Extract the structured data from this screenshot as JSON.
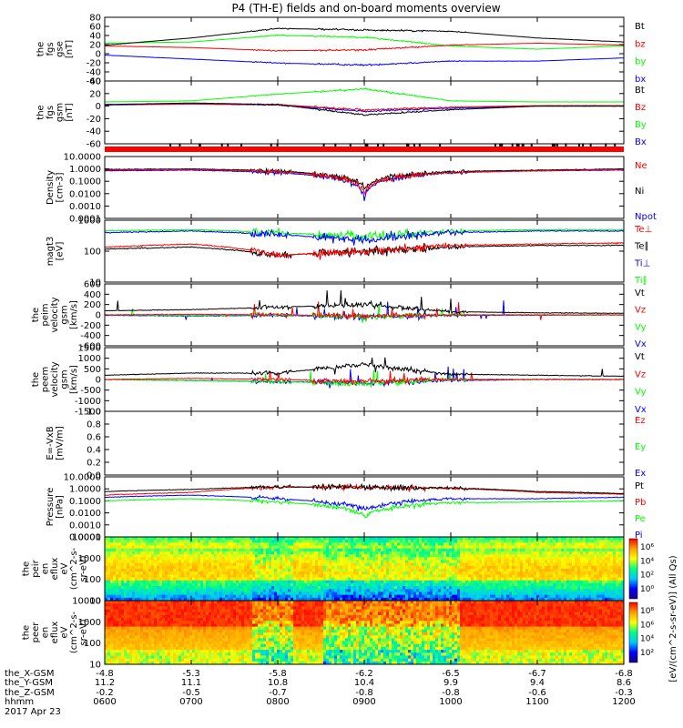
{
  "title": "P4 (TH-E) fields and on-board moments overview",
  "colors": {
    "black": "#000000",
    "red": "#ff0000",
    "green": "#00ff00",
    "blue": "#0000ff",
    "spec_stops": [
      "#1a0080",
      "#0000ff",
      "#00c8ff",
      "#00ff80",
      "#ffff00",
      "#ffa000",
      "#ff0000"
    ]
  },
  "colorbar": {
    "label": "[eV/(cm^2-s-sr-eV)] (All Qs)",
    "ticks1": [
      "10⁶",
      "10⁴",
      "10²",
      "10⁰"
    ],
    "ticks2": [
      "10⁸",
      "10⁶",
      "10⁴",
      "10²"
    ]
  },
  "footer": {
    "row_labels": [
      "the_X-GSM",
      "the_Y-GSM",
      "the_Z-GSM",
      "hhmm",
      "2017 Apr 23"
    ],
    "columns": [
      {
        "x": "-4.8",
        "y": "11.2",
        "z": "-0.2",
        "t": "0600"
      },
      {
        "x": "-5.3",
        "y": "11.1",
        "z": "-0.5",
        "t": "0700"
      },
      {
        "x": "-5.8",
        "y": "10.8",
        "z": "-0.7",
        "t": "0800"
      },
      {
        "x": "-6.2",
        "y": "10.4",
        "z": "-0.8",
        "t": "0900"
      },
      {
        "x": "-6.5",
        "y": "9.9",
        "z": "-0.8",
        "t": "1000"
      },
      {
        "x": "-6.7",
        "y": "9.4",
        "z": "-0.6",
        "t": "1100"
      },
      {
        "x": "-6.8",
        "y": "8.6",
        "z": "-0.3",
        "t": "1200"
      }
    ]
  },
  "panels": [
    {
      "id": "fgs-gse",
      "ylabel": [
        "the",
        "fgs",
        "gse",
        "[nT]"
      ],
      "yticks": [
        "80",
        "60",
        "40",
        "20",
        "0",
        "-20",
        "-40",
        "-60"
      ],
      "legend": [
        {
          "text": "Bt",
          "color": "black"
        },
        {
          "text": "bz",
          "color": "red"
        },
        {
          "text": "by",
          "color": "green"
        },
        {
          "text": "bx",
          "color": "blue"
        }
      ]
    },
    {
      "id": "fgs-gsm",
      "ylabel": [
        "the",
        "fgs",
        "gsm",
        "[nT]"
      ],
      "yticks": [
        "40",
        "20",
        "0",
        "-20",
        "-40",
        "-60"
      ],
      "legend": [
        {
          "text": "Bt",
          "color": "black"
        },
        {
          "text": "Bz",
          "color": "red"
        },
        {
          "text": "By",
          "color": "green"
        },
        {
          "text": "Bx",
          "color": "blue"
        }
      ]
    },
    {
      "id": "density",
      "ylabel": [
        "Density",
        "[cm-3]"
      ],
      "yticks": [
        "10.0000",
        "1.0000",
        "0.1000",
        "0.0100",
        "0.0010",
        "0.0001"
      ],
      "legend": [
        {
          "text": "Ne",
          "color": "red"
        },
        {
          "text": "Ni",
          "color": "black"
        },
        {
          "text": "Npot",
          "color": "blue"
        }
      ]
    },
    {
      "id": "temperature",
      "ylabel": [
        "magt3",
        "[eV]"
      ],
      "yticks": [
        "1000",
        "100",
        "10"
      ],
      "legend": [
        {
          "text": "Te⊥",
          "color": "red"
        },
        {
          "text": "Te∥",
          "color": "black"
        },
        {
          "text": "Ti⊥",
          "color": "blue"
        },
        {
          "text": "Ti∥",
          "color": "green"
        }
      ]
    },
    {
      "id": "peim-velocity",
      "ylabel": [
        "the",
        "peim",
        "velocity",
        "gsm",
        "[km/s]"
      ],
      "yticks": [
        "600",
        "400",
        "200",
        "0",
        "-200",
        "-400",
        "-600"
      ],
      "legend": [
        {
          "text": "Vt",
          "color": "black"
        },
        {
          "text": "Vz",
          "color": "red"
        },
        {
          "text": "Vy",
          "color": "green"
        },
        {
          "text": "Vx",
          "color": "blue"
        }
      ]
    },
    {
      "id": "peem-velocity",
      "ylabel": [
        "the",
        "peem",
        "velocity",
        "gsm",
        "[km/s]"
      ],
      "yticks": [
        "1500",
        "1000",
        "500",
        "0",
        "-500",
        "-1000",
        "-1500"
      ],
      "legend": [
        {
          "text": "Vt",
          "color": "black"
        },
        {
          "text": "Vz",
          "color": "red"
        },
        {
          "text": "Vy",
          "color": "green"
        },
        {
          "text": "Vx",
          "color": "blue"
        }
      ]
    },
    {
      "id": "efield",
      "ylabel": [
        "E=-VxB",
        "[mV/m]"
      ],
      "yticks": [
        "1.0",
        "0.8",
        "0.6",
        "0.4",
        "0.2",
        "0.0"
      ],
      "legend": [
        {
          "text": "Ez",
          "color": "red"
        },
        {
          "text": "Ey",
          "color": "green"
        },
        {
          "text": "Ex",
          "color": "blue"
        }
      ]
    },
    {
      "id": "pressure",
      "ylabel": [
        "Pressure",
        "[nPa]"
      ],
      "yticks": [
        "10.0000",
        "1.0000",
        "0.1000",
        "0.0100",
        "0.0010",
        "0.0001"
      ],
      "legend": [
        {
          "text": "Pt",
          "color": "black"
        },
        {
          "text": "Pb",
          "color": "red"
        },
        {
          "text": "Pe",
          "color": "green"
        },
        {
          "text": "Pi",
          "color": "blue"
        }
      ]
    },
    {
      "id": "peir-eflux",
      "ylabel": [
        "the",
        "peir",
        "en",
        "eflux",
        "eV",
        "(cm^2-s-",
        "sr-eV)"
      ],
      "yticks": [
        "10000",
        "1000",
        "100",
        "10"
      ],
      "legend": []
    },
    {
      "id": "peer-eflux",
      "ylabel": [
        "the",
        "peer",
        "en",
        "eflux",
        "eV",
        "(cm^2-s-",
        "sr-eV)"
      ],
      "yticks": [
        "10000",
        "1000",
        "100",
        "10"
      ],
      "legend": []
    }
  ],
  "chart_data": [
    {
      "type": "line",
      "panel": "fgs-gse",
      "x_label": "hhmm",
      "x": [
        "0600",
        "0700",
        "0800",
        "0900",
        "1000",
        "1100",
        "1200"
      ],
      "ylim": [
        -70,
        90
      ],
      "series": [
        {
          "name": "Bt",
          "values": [
            20,
            38,
            62,
            58,
            55,
            38,
            28
          ]
        },
        {
          "name": "bz",
          "values": [
            18,
            14,
            6,
            8,
            20,
            25,
            20
          ]
        },
        {
          "name": "by",
          "values": [
            25,
            28,
            45,
            40,
            18,
            10,
            18
          ]
        },
        {
          "name": "bx",
          "values": [
            -5,
            -15,
            -25,
            -30,
            -20,
            -20,
            -12
          ]
        }
      ]
    },
    {
      "type": "line",
      "panel": "fgs-gsm",
      "x": [
        "0600",
        "0700",
        "0800",
        "0900",
        "1000",
        "1100",
        "1200"
      ],
      "ylim": [
        -70,
        50
      ],
      "series": [
        {
          "name": "Bt",
          "values": [
            5,
            8,
            5,
            -15,
            -5,
            2,
            2
          ]
        },
        {
          "name": "Bz",
          "values": [
            5,
            6,
            5,
            -5,
            0,
            3,
            3
          ]
        },
        {
          "name": "By",
          "values": [
            10,
            12,
            25,
            35,
            12,
            10,
            10
          ]
        },
        {
          "name": "Bx",
          "values": [
            4,
            6,
            4,
            -8,
            -2,
            2,
            2
          ]
        }
      ]
    },
    {
      "type": "line",
      "panel": "density",
      "x": [
        "0600",
        "0700",
        "0800",
        "0900",
        "1000",
        "1100",
        "1200"
      ],
      "yscale": "log",
      "ylim": [
        0.0001,
        10
      ],
      "series": [
        {
          "name": "Ne",
          "values": [
            0.8,
            0.9,
            0.6,
            0.01,
            0.5,
            0.7,
            0.9
          ]
        },
        {
          "name": "Ni",
          "values": [
            0.9,
            1.0,
            0.7,
            0.03,
            0.6,
            0.8,
            1.0
          ]
        },
        {
          "name": "Npot",
          "values": [
            0.7,
            0.8,
            0.5,
            0.003,
            0.5,
            0.7,
            0.8
          ]
        }
      ]
    },
    {
      "type": "line",
      "panel": "temperature",
      "x": [
        "0600",
        "0700",
        "0800",
        "0900",
        "1000",
        "1100",
        "1200"
      ],
      "yscale": "log",
      "ylim": [
        10,
        10000
      ],
      "series": [
        {
          "name": "Te⊥",
          "values": [
            500,
            700,
            200,
            300,
            600,
            700,
            800
          ]
        },
        {
          "name": "Te∥",
          "values": [
            400,
            500,
            200,
            300,
            500,
            600,
            600
          ]
        },
        {
          "name": "Ti⊥",
          "values": [
            2500,
            3000,
            2000,
            1000,
            2500,
            3000,
            3000
          ]
        },
        {
          "name": "Ti∥",
          "values": [
            3000,
            3500,
            2500,
            1500,
            3000,
            3500,
            3500
          ]
        }
      ]
    },
    {
      "type": "line",
      "panel": "peim-velocity",
      "x": [
        "0600",
        "0700",
        "0800",
        "0900",
        "1000",
        "1100",
        "1200"
      ],
      "ylim": [
        -600,
        600
      ],
      "series": [
        {
          "name": "Vt",
          "values": [
            80,
            100,
            150,
            200,
            60,
            40,
            30
          ]
        },
        {
          "name": "Vz",
          "values": [
            0,
            10,
            0,
            -20,
            0,
            0,
            0
          ]
        },
        {
          "name": "Vy",
          "values": [
            0,
            -10,
            0,
            -30,
            0,
            0,
            0
          ]
        },
        {
          "name": "Vx",
          "values": [
            -10,
            -20,
            -10,
            -40,
            -10,
            -5,
            0
          ]
        }
      ]
    },
    {
      "type": "line",
      "panel": "peem-velocity",
      "x": [
        "0600",
        "0700",
        "0800",
        "0900",
        "1000",
        "1100",
        "1200"
      ],
      "ylim": [
        -1500,
        1500
      ],
      "series": [
        {
          "name": "Vt",
          "values": [
            200,
            300,
            300,
            700,
            250,
            200,
            150
          ]
        },
        {
          "name": "Vz",
          "values": [
            0,
            50,
            0,
            -100,
            0,
            0,
            0
          ]
        },
        {
          "name": "Vy",
          "values": [
            0,
            -50,
            -100,
            -200,
            0,
            0,
            0
          ]
        },
        {
          "name": "Vx",
          "values": [
            0,
            -50,
            -100,
            -150,
            -50,
            0,
            0
          ]
        }
      ]
    },
    {
      "type": "line",
      "panel": "efield",
      "x": [
        "0600",
        "0700",
        "0800",
        "0900",
        "1000",
        "1100",
        "1200"
      ],
      "ylim": [
        0,
        1
      ],
      "series": []
    },
    {
      "type": "line",
      "panel": "pressure",
      "x": [
        "0600",
        "0700",
        "0800",
        "0900",
        "1000",
        "1100",
        "1200"
      ],
      "yscale": "log",
      "ylim": [
        0.0001,
        10
      ],
      "series": [
        {
          "name": "Pt",
          "values": [
            0.6,
            0.9,
            1.5,
            1.3,
            1.2,
            0.6,
            0.4
          ]
        },
        {
          "name": "Pb",
          "values": [
            0.3,
            0.5,
            1.4,
            1.3,
            1.1,
            0.5,
            0.35
          ]
        },
        {
          "name": "Pe",
          "values": [
            0.1,
            0.15,
            0.08,
            0.005,
            0.07,
            0.08,
            0.1
          ]
        },
        {
          "name": "Pi",
          "values": [
            0.2,
            0.3,
            0.15,
            0.02,
            0.15,
            0.15,
            0.2
          ]
        }
      ]
    },
    {
      "type": "heatmap",
      "panel": "peir-eflux",
      "x": [
        "0600",
        "0700",
        "0800",
        "0900",
        "1000",
        "1100",
        "1200"
      ],
      "yscale": "log",
      "ylim": [
        10,
        20000
      ],
      "zscale": "log"
    },
    {
      "type": "heatmap",
      "panel": "peer-eflux",
      "x": [
        "0600",
        "0700",
        "0800",
        "0900",
        "1000",
        "1100",
        "1200"
      ],
      "yscale": "log",
      "ylim": [
        10,
        20000
      ],
      "zscale": "log"
    }
  ]
}
